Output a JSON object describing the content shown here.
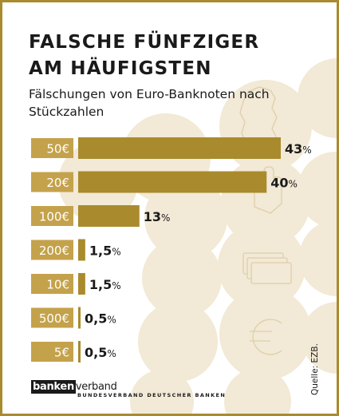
{
  "title_lines": [
    "FALSCHE FÜNFZIGER",
    "AM HÄUFIGSTEN"
  ],
  "subtitle": "Fälschungen von Euro-Banknoten nach Stückzahlen",
  "colors": {
    "frame": "#a98b2e",
    "bar": "#a98b2e",
    "label_box": "#c4a24b",
    "decor": "#f2e9d6",
    "text": "#1a1a1a"
  },
  "decor_icons": [
    "germany-map-icon",
    "hand-icon",
    "banknotes-icon",
    "euro-sign-icon"
  ],
  "chart_data": {
    "type": "bar",
    "orientation": "horizontal",
    "title": "FALSCHE FÜNFZIGER AM HÄUFIGSTEN",
    "subtitle": "Fälschungen von Euro-Banknoten nach Stückzahlen",
    "unit": "%",
    "categories": [
      "50€",
      "20€",
      "100€",
      "200€",
      "10€",
      "500€",
      "5€"
    ],
    "values": [
      43,
      40,
      13,
      1.5,
      1.5,
      0.5,
      0.5
    ],
    "value_labels": [
      "43",
      "40",
      "13",
      "1,5",
      "1,5",
      "0,5",
      "0,5"
    ],
    "xlim": [
      0,
      43
    ],
    "grid": false,
    "legend": "none"
  },
  "logo": {
    "bold": "banken",
    "light": "verband",
    "tagline": "BUNDESVERBAND DEUTSCHER BANKEN"
  },
  "source": "Quelle: EZB."
}
